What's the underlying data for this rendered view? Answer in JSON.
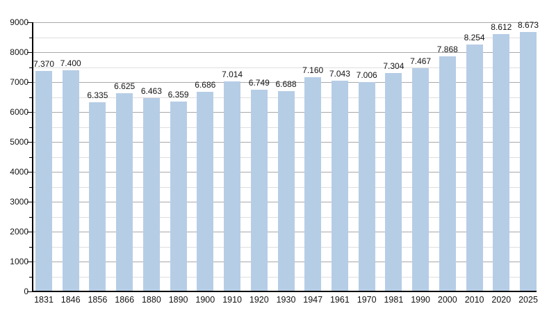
{
  "chart_data": {
    "type": "bar",
    "title": "",
    "xlabel": "",
    "ylabel": "",
    "categories": [
      "1831",
      "1846",
      "1856",
      "1866",
      "1880",
      "1890",
      "1900",
      "1910",
      "1920",
      "1930",
      "1947",
      "1961",
      "1970",
      "1981",
      "1990",
      "2000",
      "2010",
      "2020",
      "2025"
    ],
    "values": [
      7370,
      7400,
      6335,
      6625,
      6463,
      6359,
      6686,
      7014,
      6749,
      6688,
      7160,
      7043,
      7006,
      7304,
      7467,
      7868,
      8254,
      8612,
      8673
    ],
    "value_labels": [
      "7.370",
      "7.400",
      "6.335",
      "6.625",
      "6.463",
      "6.359",
      "6.686",
      "7.014",
      "6.749",
      "6.688",
      "7.160",
      "7.043",
      "7.006",
      "7.304",
      "7.467",
      "7.868",
      "8.254",
      "8.612",
      "8.673"
    ],
    "ylim": [
      0,
      9000
    ],
    "y_major_tick_values": [
      0,
      1000,
      2000,
      3000,
      4000,
      5000,
      6000,
      7000,
      8000,
      9000
    ],
    "y_tick_labels": [
      "0",
      "1000",
      "2000",
      "3000",
      "4000",
      "5000",
      "6000",
      "7000",
      "8000",
      "9000"
    ],
    "y_minor_tick_interval": 500,
    "grid": "horizontal only; minor lines every 500, major lines every 1000",
    "legend": "none",
    "colors": {
      "bar_fill": "#b6cde6",
      "major_grid": "#a8a8a8",
      "minor_grid": "#dedede",
      "axis": "#000000",
      "text": "#131313",
      "background": "#ffffff"
    }
  }
}
